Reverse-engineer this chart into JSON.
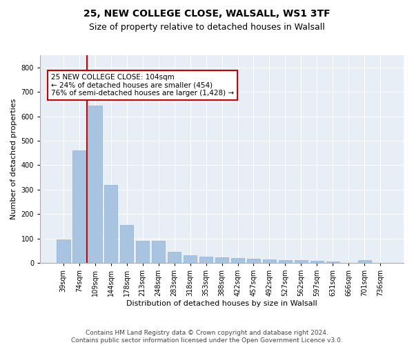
{
  "title_line1": "25, NEW COLLEGE CLOSE, WALSALL, WS1 3TF",
  "title_line2": "Size of property relative to detached houses in Walsall",
  "xlabel": "Distribution of detached houses by size in Walsall",
  "ylabel": "Number of detached properties",
  "categories": [
    "39sqm",
    "74sqm",
    "109sqm",
    "144sqm",
    "178sqm",
    "213sqm",
    "248sqm",
    "283sqm",
    "318sqm",
    "353sqm",
    "388sqm",
    "422sqm",
    "457sqm",
    "492sqm",
    "527sqm",
    "562sqm",
    "597sqm",
    "631sqm",
    "666sqm",
    "701sqm",
    "736sqm"
  ],
  "values": [
    95,
    460,
    645,
    320,
    155,
    90,
    90,
    45,
    30,
    25,
    22,
    20,
    18,
    15,
    12,
    10,
    8,
    6,
    0,
    10,
    0
  ],
  "bar_color": "#a8c4e0",
  "bar_edge_color": "#8ab4d4",
  "vline_x_index": 1.5,
  "vline_color": "#cc0000",
  "annotation_box_text": "25 NEW COLLEGE CLOSE: 104sqm\n← 24% of detached houses are smaller (454)\n76% of semi-detached houses are larger (1,428) →",
  "box_edge_color": "#cc0000",
  "background_color": "#e8eef6",
  "ylim": [
    0,
    850
  ],
  "yticks": [
    0,
    100,
    200,
    300,
    400,
    500,
    600,
    700,
    800
  ],
  "footer_text": "Contains HM Land Registry data © Crown copyright and database right 2024.\nContains public sector information licensed under the Open Government Licence v3.0.",
  "title_fontsize": 10,
  "subtitle_fontsize": 9,
  "axis_label_fontsize": 8,
  "tick_fontsize": 7,
  "annotation_fontsize": 7.5,
  "footer_fontsize": 6.5
}
